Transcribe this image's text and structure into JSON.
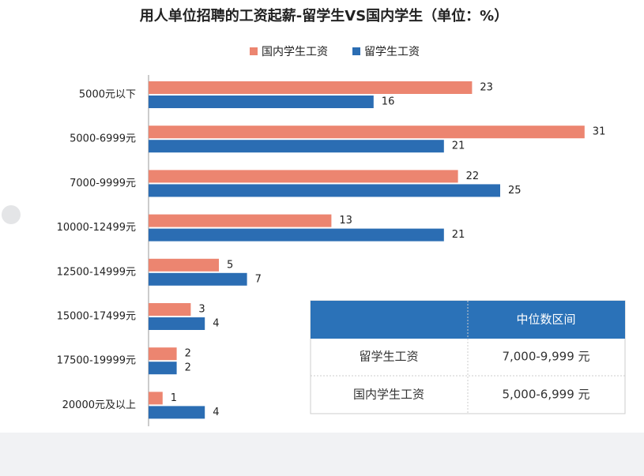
{
  "chart_data": {
    "type": "bar",
    "orientation": "horizontal",
    "title": "用人单位招聘的工资起薪-留学生VS国内学生（单位：%）",
    "categories": [
      "5000元以下",
      "5000-6999元",
      "7000-9999元",
      "10000-12499元",
      "12500-14999元",
      "15000-17499元",
      "17500-19999元",
      "20000元及以上"
    ],
    "series": [
      {
        "name": "国内学生工资",
        "color": "#ec8570",
        "values": [
          23,
          31,
          22,
          13,
          5,
          3,
          2,
          1
        ]
      },
      {
        "name": "留学生工资",
        "color": "#2b6db3",
        "values": [
          16,
          21,
          25,
          21,
          7,
          4,
          2,
          4
        ]
      }
    ]
  },
  "table": {
    "header": "中位数区间",
    "rows": [
      [
        "留学生工资",
        "7,000-9,999 元"
      ],
      [
        "国内学生工资",
        "5,000-6,999 元"
      ]
    ]
  }
}
